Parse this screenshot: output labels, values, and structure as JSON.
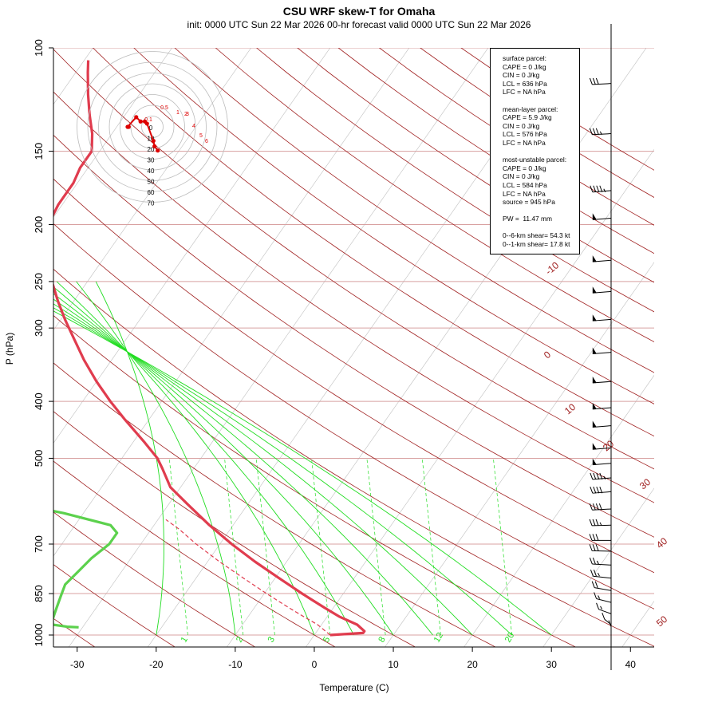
{
  "title": "CSU WRF skew-T for Omaha",
  "subtitle": "init: 0000 UTC Sun 22 Mar 2026     00-hr forecast valid 0000 UTC Sun 22 Mar 2026",
  "colors": {
    "temperature": "#e03c4e",
    "dewpoint": "#5cd14d",
    "dry_adiabat": "#a02020",
    "moist_adiabat": "#22dd22",
    "mixing_ratio": "#22dd22",
    "hodograph": "#dd0000",
    "grid": "#c0c0c0"
  },
  "info": {
    "surface": [
      "surface parcel:",
      "CAPE = 0 J/kg",
      "CIN = 0 J/kg",
      "LCL = 636 hPa",
      "LFC = NA hPa"
    ],
    "mean_layer": [
      "mean-layer parcel:",
      "CAPE = 5.9 J/kg",
      "CIN = 0 J/kg",
      "LCL = 576 hPa",
      "LFC = NA hPa"
    ],
    "most_unstable": [
      "most-unstable parcel:",
      "CAPE = 0 J/kg",
      "CIN = 0 J/kg",
      "LCL = 584 hPa",
      "LFC = NA hPa",
      "source = 945 hPa"
    ],
    "pw": "PW =  11.47 mm",
    "shear": [
      "0--6-km shear= 54.3 kt",
      "0--1-km shear= 17.8 kt"
    ]
  },
  "chart_data": {
    "type": "line",
    "diagram": "skew-T log-p",
    "xlabel": "Temperature (C)",
    "ylabel": "P (hPa)",
    "xlim": [
      -33,
      43
    ],
    "ylim": [
      1000,
      100
    ],
    "x_ticks": [
      "-30",
      "-20",
      "-10",
      "0",
      "10",
      "20",
      "30",
      "40"
    ],
    "y_ticks": [
      "100",
      "150",
      "200",
      "250",
      "300",
      "400",
      "500",
      "700",
      "850",
      "1000"
    ],
    "dry_adiabat_labels": [
      "-10",
      "0",
      "10",
      "20",
      "30",
      "40",
      "50"
    ],
    "mixing_ratio_labels": [
      "1",
      "2",
      "3",
      "5",
      "8",
      "12",
      "20"
    ],
    "series": [
      {
        "name": "",
        "role": "temperature",
        "pressure": [
          1000,
          992,
          985,
          960,
          930,
          900,
          870,
          850,
          800,
          750,
          700,
          650,
          600,
          560,
          520,
          500,
          470,
          430,
          400,
          370,
          340,
          310,
          290,
          270,
          250,
          235,
          220,
          200,
          185,
          170,
          160,
          150,
          140,
          130,
          120,
          110,
          105
        ],
        "temp": [
          2.0,
          6.0,
          6.0,
          4.5,
          1.5,
          -1.0,
          -3.5,
          -5.2,
          -9.5,
          -14.0,
          -18.5,
          -23.0,
          -27.5,
          -31.3,
          -34.0,
          -35.5,
          -38.5,
          -43.0,
          -46.5,
          -50.0,
          -53.5,
          -57.0,
          -59.5,
          -62.0,
          -64.5,
          -66.5,
          -68.5,
          -70.0,
          -70.5,
          -70.5,
          -71.0,
          -71.0,
          -72.5,
          -74.5,
          -76.5,
          -78.5,
          -79.5
        ]
      },
      {
        "name": "",
        "role": "dewpoint",
        "pressure": [
          970,
          968,
          960,
          940,
          900,
          860,
          820,
          780,
          740,
          700,
          670,
          650,
          620,
          590,
          560,
          540,
          520,
          500,
          480,
          460,
          430,
          400,
          370,
          340,
          310,
          290,
          270,
          250,
          230,
          210,
          195,
          185,
          180
        ],
        "dewpt": [
          -30.5,
          -32.0,
          -34.0,
          -34.5,
          -35.0,
          -35.5,
          -36.0,
          -35.5,
          -35.0,
          -34.0,
          -34.0,
          -35.5,
          -42.5,
          -51.5,
          -57.0,
          -55.0,
          -53.5,
          -53.0,
          -55.0,
          -58.0,
          -63.0,
          -66.0,
          -67.0,
          -68.0,
          -69.0,
          -70.0,
          -71.0,
          -72.5,
          -75.0,
          -78.0,
          -81.0,
          -82.0,
          -82.5
        ]
      }
    ],
    "parcel_path": {
      "pressure": [
        1000,
        960,
        930,
        900,
        870,
        850,
        800,
        750,
        700,
        660,
        636
      ],
      "temp": [
        2.0,
        -0.5,
        -3.0,
        -5.5,
        -8.0,
        -9.7,
        -14.0,
        -18.5,
        -23.0,
        -26.5,
        -29.0
      ]
    },
    "hodograph": {
      "ring_labels": [
        "0",
        "10",
        "20",
        "30",
        "40",
        "50",
        "60",
        "70"
      ],
      "point_labels": [
        "0.5",
        "1",
        "2",
        "3",
        "4",
        "5",
        "6",
        "0.1"
      ],
      "u_kt": [
        -22,
        -23,
        -15,
        -11,
        -7,
        -5,
        1,
        2,
        5
      ],
      "v_kt": [
        0,
        0,
        9,
        5,
        5,
        3,
        -13,
        -18,
        -22
      ]
    },
    "wind_barbs": {
      "pressure": [
        115,
        140,
        175,
        195,
        230,
        260,
        290,
        330,
        370,
        410,
        440,
        480,
        510,
        540,
        570,
        610,
        650,
        690,
        720,
        760,
        800,
        840,
        880,
        920,
        960,
        990
      ],
      "speed_kt": [
        30,
        35,
        45,
        50,
        55,
        55,
        55,
        55,
        55,
        55,
        55,
        55,
        50,
        45,
        40,
        40,
        35,
        30,
        30,
        25,
        25,
        20,
        15,
        15,
        10,
        10
      ],
      "dir_deg": [
        280,
        280,
        285,
        285,
        285,
        285,
        285,
        285,
        285,
        285,
        285,
        285,
        285,
        285,
        285,
        280,
        275,
        270,
        265,
        260,
        250,
        240,
        230,
        220,
        200,
        180
      ]
    }
  }
}
